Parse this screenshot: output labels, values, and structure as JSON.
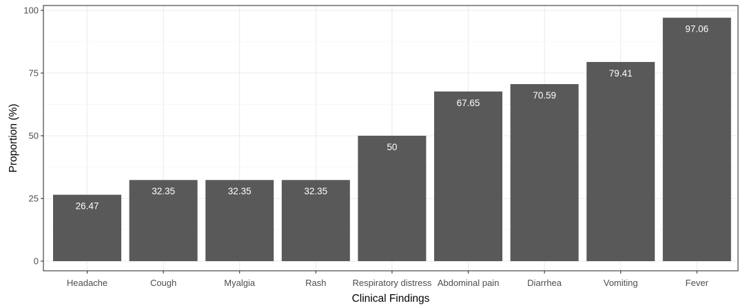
{
  "chart_data": {
    "type": "bar",
    "xlabel": "Clinical Findings",
    "ylabel": "Proportion (%)",
    "categories": [
      "Headache",
      "Cough",
      "Myalgia",
      "Rash",
      "Respiratory distress",
      "Abdominal pain",
      "Diarrhea",
      "Vomiting",
      "Fever"
    ],
    "values": [
      26.47,
      32.35,
      32.35,
      32.35,
      50,
      67.65,
      70.59,
      79.41,
      97.06
    ],
    "data_labels": [
      "26.47",
      "32.35",
      "32.35",
      "32.35",
      "50",
      "67.65",
      "70.59",
      "79.41",
      "97.06"
    ],
    "yticks": [
      0,
      25,
      50,
      75,
      100
    ],
    "ylim": [
      0,
      100
    ],
    "grid": true,
    "bar_color": "#595959",
    "label_color": "#ffffff"
  }
}
